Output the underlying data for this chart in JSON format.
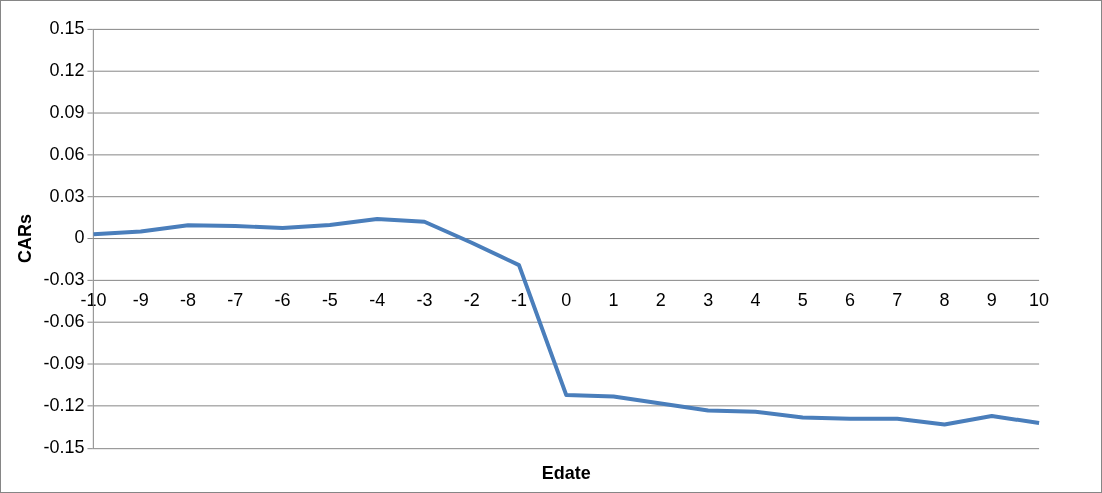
{
  "chart_data": {
    "type": "line",
    "xlabel": "Edate",
    "ylabel": "CARs",
    "categories": [
      "-10",
      "-9",
      "-8",
      "-7",
      "-6",
      "-5",
      "-4",
      "-3",
      "-2",
      "-1",
      "0",
      "1",
      "2",
      "3",
      "4",
      "5",
      "6",
      "7",
      "8",
      "9",
      "10"
    ],
    "series": [
      {
        "color": "#4a7ebb",
        "values": [
          0.003,
          0.005,
          0.0095,
          0.009,
          0.0075,
          0.0097,
          0.014,
          0.012,
          -0.003,
          -0.019,
          -0.112,
          -0.113,
          -0.118,
          -0.123,
          -0.124,
          -0.128,
          -0.129,
          -0.129,
          -0.133,
          -0.127,
          -0.132
        ]
      }
    ],
    "ylim": [
      -0.15,
      0.15
    ],
    "yticks": [
      -0.15,
      -0.12,
      -0.09,
      -0.06,
      -0.03,
      0,
      0.03,
      0.06,
      0.09,
      0.12,
      0.15
    ],
    "grid": "y",
    "legend": false,
    "marker": "none",
    "line_style": "solid"
  }
}
